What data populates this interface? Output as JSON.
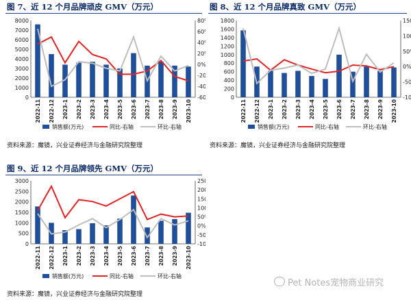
{
  "colors": {
    "bar": "#1f4e9b",
    "yoy": "#e02424",
    "mom": "#bdbdbd",
    "title": "#0a2a66"
  },
  "footer": {
    "watermark": "Pet Notes宠物商业研究"
  },
  "charts": [
    {
      "title": "图 7、近 12 个月品牌顽皮 GMV（万元）",
      "source": "资料来源：魔镜，兴业证券经济与金融研究院整理",
      "legend": [
        "销售额(万元)",
        "同比-右轴",
        "环比-右轴"
      ],
      "left_ticks": [
        "8000",
        "7000",
        "6000",
        "5000",
        "4000",
        "3000",
        "2000",
        "1000",
        "0"
      ],
      "right_ticks": [
        "80%",
        "60%",
        "40%",
        "20%",
        "0%",
        "-20%",
        "-40%",
        "-60%"
      ],
      "x_ticks": [
        "2022-11",
        "2022-12",
        "2023-1",
        "2023-2",
        "2023-3",
        "2023-4",
        "2023-5",
        "2023-6",
        "2023-7",
        "2023-8",
        "2023-9",
        "2023-10"
      ]
    },
    {
      "title": "图 8、近 12 个月品牌真致 GMV（万元）",
      "source": "资料来源：魔镜，兴业证券经济与金融研究院整理",
      "legend": [
        "销售额(万元)",
        "同比-右轴",
        "环比-右轴"
      ],
      "left_ticks": [
        "1800",
        "1600",
        "1400",
        "1200",
        "1000",
        "800",
        "600",
        "400",
        "200",
        "0"
      ],
      "right_ticks": [
        "150%",
        "100%",
        "50%",
        "0%",
        "-50%",
        "-100%"
      ],
      "x_ticks": [
        "2022-11",
        "2022-12",
        "2023-1",
        "2023-2",
        "2023-3",
        "2023-4",
        "2023-5",
        "2023-6",
        "2023-7",
        "2023-8",
        "2023-9",
        "2023-10"
      ]
    },
    {
      "title": "图 9、近 12 个月品牌领先 GMV（万元）",
      "source": "资料来源：魔镜，兴业证券经济与金融研究院整理",
      "legend": [
        "销售额(万元)",
        "同比-右轴",
        "环比-右轴"
      ],
      "left_ticks": [
        "3000",
        "2500",
        "2000",
        "1500",
        "1000",
        "500",
        "0"
      ],
      "right_ticks": [
        "250%",
        "200%",
        "150%",
        "100%",
        "50%",
        "0%",
        "-50%",
        "-100%"
      ],
      "x_ticks": [
        "2022-11",
        "2022-12",
        "2023-1",
        "2023-2",
        "2023-3",
        "2023-4",
        "2023-5",
        "2023-6",
        "2023-7",
        "2023-8",
        "2023-9",
        "2023-10"
      ]
    }
  ],
  "chart_data": [
    {
      "type": "bar",
      "categories": [
        "2022-11",
        "2022-12",
        "2023-1",
        "2023-2",
        "2023-3",
        "2023-4",
        "2023-5",
        "2023-6",
        "2023-7",
        "2023-8",
        "2023-9",
        "2023-10"
      ],
      "series": [
        {
          "name": "销售额(万元)",
          "type": "bar",
          "axis": "left",
          "values": [
            7600,
            4500,
            3400,
            3600,
            3700,
            3400,
            3000,
            4600,
            3300,
            3700,
            3300,
            3200
          ]
        },
        {
          "name": "同比-右轴",
          "type": "line",
          "axis": "right",
          "values": [
            37,
            50,
            3,
            42,
            18,
            10,
            -18,
            -18,
            -12,
            7,
            -22,
            -30
          ]
        },
        {
          "name": "环比-右轴",
          "type": "line",
          "axis": "right",
          "values": [
            65,
            -40,
            -28,
            5,
            2,
            -7,
            -12,
            50,
            -30,
            15,
            -12,
            -2
          ]
        }
      ],
      "ylim_left": [
        0,
        8000
      ],
      "ylim_right": [
        -60,
        80
      ]
    },
    {
      "type": "bar",
      "categories": [
        "2022-11",
        "2022-12",
        "2023-1",
        "2023-2",
        "2023-3",
        "2023-4",
        "2023-5",
        "2023-6",
        "2023-7",
        "2023-8",
        "2023-9",
        "2023-10"
      ],
      "series": [
        {
          "name": "销售额(万元)",
          "type": "bar",
          "axis": "left",
          "values": [
            1570,
            720,
            620,
            570,
            620,
            500,
            430,
            1000,
            600,
            720,
            620,
            700
          ]
        },
        {
          "name": "同比-右轴",
          "type": "line",
          "axis": "right",
          "values": [
            18,
            25,
            -12,
            22,
            5,
            -8,
            -20,
            -15,
            5,
            2,
            -10,
            0
          ]
        },
        {
          "name": "环比-右轴",
          "type": "line",
          "axis": "right",
          "values": [
            125,
            -55,
            -12,
            -5,
            5,
            -22,
            -8,
            125,
            -48,
            40,
            -18,
            12
          ]
        }
      ],
      "ylim_left": [
        0,
        1800
      ],
      "ylim_right": [
        -100,
        150
      ]
    },
    {
      "type": "bar",
      "categories": [
        "2022-11",
        "2022-12",
        "2023-1",
        "2023-2",
        "2023-3",
        "2023-4",
        "2023-5",
        "2023-6",
        "2023-7",
        "2023-8",
        "2023-9",
        "2023-10"
      ],
      "series": [
        {
          "name": "销售额(万元)",
          "type": "bar",
          "axis": "left",
          "values": [
            1780,
            1000,
            650,
            700,
            980,
            880,
            1200,
            2300,
            780,
            1100,
            1180,
            1480
          ]
        },
        {
          "name": "同比-右轴",
          "type": "line",
          "axis": "right",
          "values": [
            85,
            220,
            45,
            145,
            135,
            110,
            150,
            190,
            35,
            65,
            50,
            55
          ]
        },
        {
          "name": "环比-右轴",
          "type": "line",
          "axis": "right",
          "values": [
            68,
            -45,
            -35,
            5,
            40,
            -10,
            35,
            90,
            -65,
            40,
            5,
            28
          ]
        }
      ],
      "ylim_left": [
        0,
        3000
      ],
      "ylim_right": [
        -100,
        250
      ]
    }
  ]
}
